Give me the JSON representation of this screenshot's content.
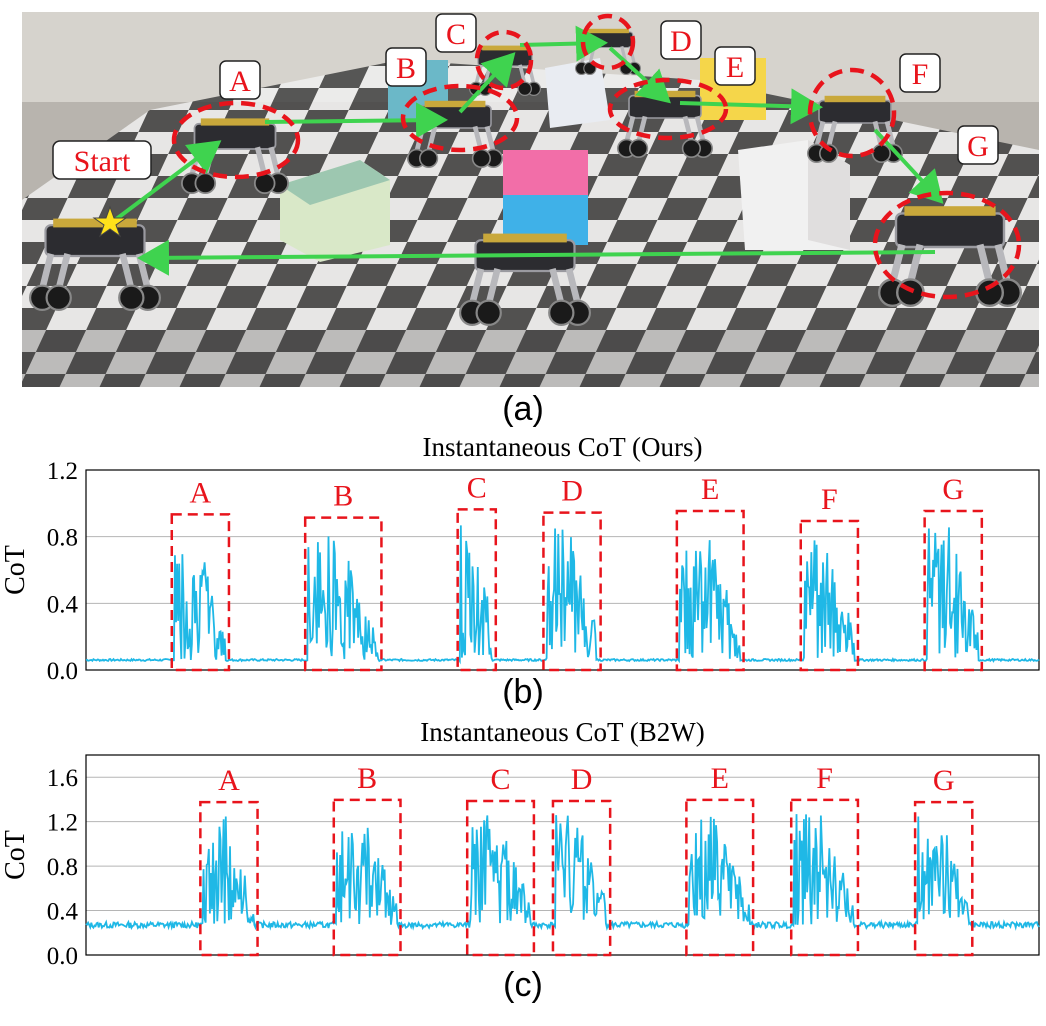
{
  "photo": {
    "start_label": "Start",
    "waypoints": [
      "A",
      "B",
      "C",
      "D",
      "E",
      "F",
      "G"
    ],
    "colors": {
      "path": "#3fd34f",
      "circle": "#e8141c",
      "label_text": "#e8141c",
      "star": "#ffe21a"
    },
    "items": [
      "start-marker-icon",
      "quadruped-robot-icon",
      "foam-cube-icon",
      "checkerboard-floor"
    ]
  },
  "captions": {
    "a": "(a)",
    "b": "(b)",
    "c": "(c)"
  },
  "chart_data": [
    {
      "type": "line",
      "title": "Instantaneous CoT (Ours)",
      "ylabel": "CoT",
      "ylim": [
        0,
        1.2
      ],
      "yticks": [
        "0.0",
        "0.4",
        "0.8",
        "1.2"
      ],
      "grid": true,
      "line_color": "#1fb8e6",
      "box_color": "#e8141c",
      "baseline": 0.06,
      "segments": [
        {
          "label": "A",
          "start": 0.09,
          "end": 0.15,
          "peak": 0.85
        },
        {
          "label": "B",
          "start": 0.23,
          "end": 0.31,
          "peak": 0.83
        },
        {
          "label": "C",
          "start": 0.39,
          "end": 0.43,
          "peak": 0.88
        },
        {
          "label": "D",
          "start": 0.48,
          "end": 0.54,
          "peak": 0.86
        },
        {
          "label": "E",
          "start": 0.62,
          "end": 0.69,
          "peak": 0.87
        },
        {
          "label": "F",
          "start": 0.75,
          "end": 0.81,
          "peak": 0.81
        },
        {
          "label": "G",
          "start": 0.88,
          "end": 0.94,
          "peak": 0.87
        }
      ]
    },
    {
      "type": "line",
      "title": "Instantaneous CoT (B2W)",
      "ylabel": "CoT",
      "ylim": [
        0,
        1.8
      ],
      "yticks": [
        "0.0",
        "0.4",
        "0.8",
        "1.2",
        "1.6"
      ],
      "grid": true,
      "line_color": "#1fb8e6",
      "box_color": "#e8141c",
      "baseline": 0.27,
      "segments": [
        {
          "label": "A",
          "start": 0.12,
          "end": 0.18,
          "peak": 1.25
        },
        {
          "label": "B",
          "start": 0.26,
          "end": 0.33,
          "peak": 1.27
        },
        {
          "label": "C",
          "start": 0.4,
          "end": 0.47,
          "peak": 1.26
        },
        {
          "label": "D",
          "start": 0.49,
          "end": 0.55,
          "peak": 1.26
        },
        {
          "label": "E",
          "start": 0.63,
          "end": 0.7,
          "peak": 1.27
        },
        {
          "label": "F",
          "start": 0.74,
          "end": 0.81,
          "peak": 1.27
        },
        {
          "label": "G",
          "start": 0.87,
          "end": 0.93,
          "peak": 1.25
        }
      ]
    }
  ]
}
